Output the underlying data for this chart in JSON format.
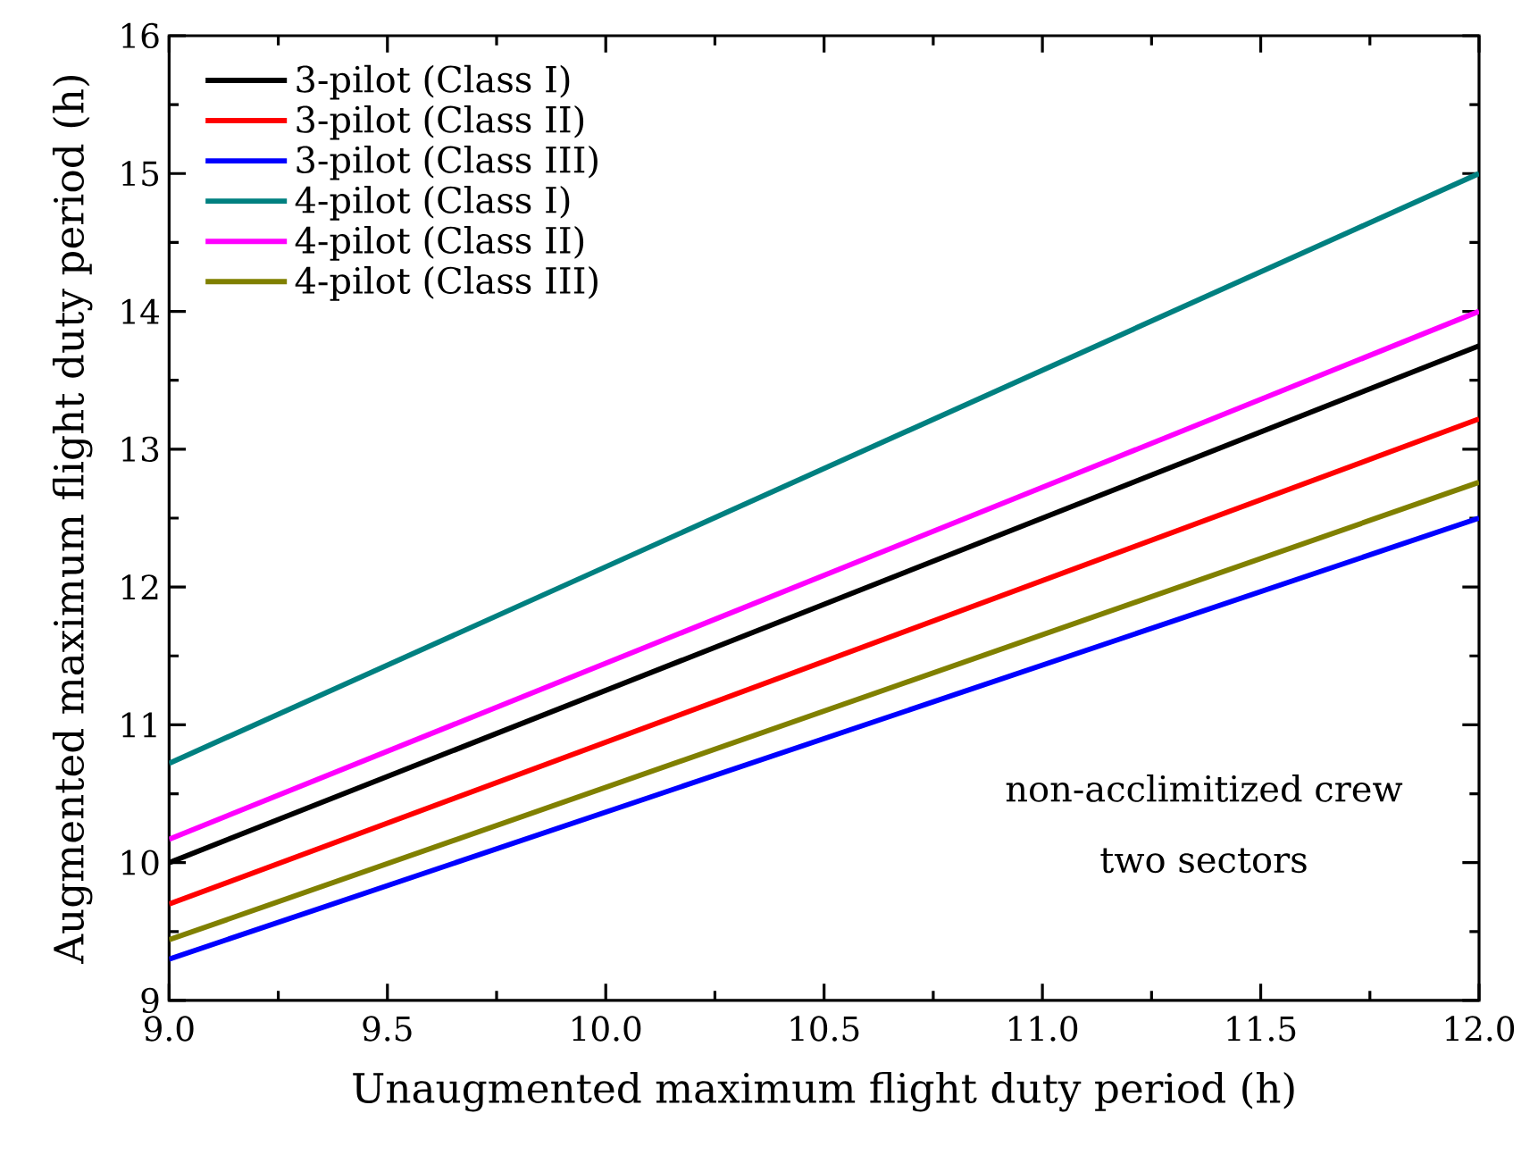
{
  "chart_data": {
    "type": "line",
    "xlabel": "Unaugmented maximum flight duty period (h)",
    "ylabel": "Augmented maximum flight duty period (h)",
    "x": [
      9.0,
      12.0
    ],
    "series": [
      {
        "name": "3-pilot (Class I)",
        "color": "#000000",
        "values": [
          10.0,
          13.75
        ]
      },
      {
        "name": "3-pilot (Class II)",
        "color": "#ff0000",
        "values": [
          9.7,
          13.22
        ]
      },
      {
        "name": "3-pilot (Class III)",
        "color": "#0000ff",
        "values": [
          9.3,
          12.5
        ]
      },
      {
        "name": "4-pilot (Class I)",
        "color": "#008080",
        "values": [
          10.72,
          15.0
        ]
      },
      {
        "name": "4-pilot (Class II)",
        "color": "#ff00ff",
        "values": [
          10.17,
          14.0
        ]
      },
      {
        "name": "4-pilot (Class III)",
        "color": "#808000",
        "values": [
          9.44,
          12.76
        ]
      }
    ],
    "xlim": [
      9.0,
      12.0
    ],
    "ylim": [
      9,
      16
    ],
    "xticks": [
      {
        "value": 9.0,
        "label": "9.0"
      },
      {
        "value": 9.5,
        "label": "9.5"
      },
      {
        "value": 10.0,
        "label": "10.0"
      },
      {
        "value": 10.5,
        "label": "10.5"
      },
      {
        "value": 11.0,
        "label": "11.0"
      },
      {
        "value": 11.5,
        "label": "11.5"
      },
      {
        "value": 12.0,
        "label": "12.0"
      }
    ],
    "yticks": [
      9,
      10,
      11,
      12,
      13,
      14,
      15,
      16
    ],
    "annotations": [
      "non-acclimitized crew",
      "two sectors"
    ],
    "legend": "top left",
    "grid": false,
    "marker": "none",
    "line_style": "solid"
  }
}
